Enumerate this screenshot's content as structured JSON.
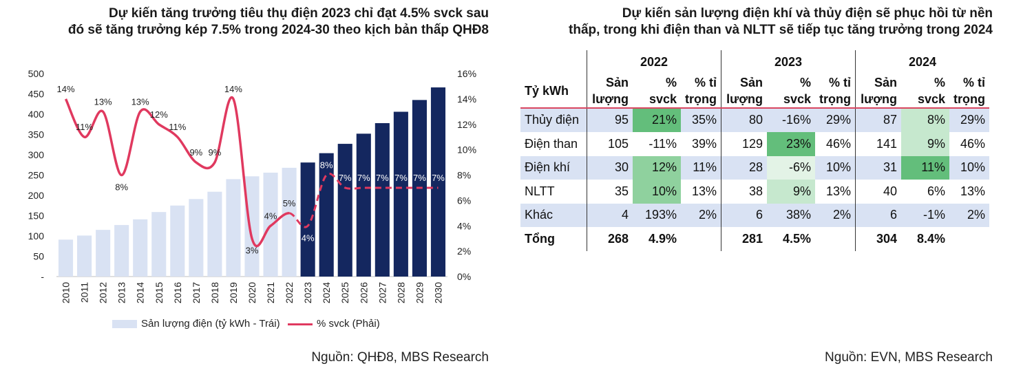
{
  "left_panel": {
    "title_line1": "Dự kiến tăng trưởng tiêu thụ điện 2023 chỉ đạt 4.5% svck sau",
    "title_line2": "đó sẽ tăng trưởng kép 7.5% trong 2024-30 theo kịch bản thấp QHĐ8",
    "source": "Nguồn: QHĐ8, MBS Research"
  },
  "right_panel": {
    "title_line1": "Dự kiến sản lượng điện khí và thủy điện sẽ phục hồi từ nền",
    "title_line2": "thấp, trong khi điện than và NLTT sẽ tiếp tục tăng trưởng trong 2024",
    "source": "Nguồn: EVN, MBS Research"
  },
  "chart_data": {
    "type": "bar",
    "categories": [
      "2010",
      "2011",
      "2012",
      "2013",
      "2014",
      "2015",
      "2016",
      "2017",
      "2018",
      "2019",
      "2020",
      "2021",
      "2022",
      "2023",
      "2024",
      "2025",
      "2026",
      "2027",
      "2028",
      "2029",
      "2030"
    ],
    "series": [
      {
        "name": "Sản lượng điện (tỷ kWh - Trái)",
        "type": "bar",
        "axis": "left",
        "values": [
          91,
          101,
          115,
          127,
          141,
          159,
          175,
          191,
          209,
          240,
          247,
          256,
          268,
          281,
          304,
          327,
          352,
          378,
          406,
          435,
          466
        ]
      },
      {
        "name": "% svck (Phải)",
        "type": "line",
        "axis": "right",
        "values": [
          14,
          11,
          13,
          8,
          13,
          12,
          11,
          9,
          9,
          14,
          3,
          4,
          5,
          4,
          8,
          7,
          7,
          7,
          7,
          7,
          7
        ],
        "labels": [
          "14%",
          "11%",
          "13%",
          "8%",
          "13%",
          "12%",
          "11%",
          "9%",
          "9%",
          "14%",
          "3%",
          "4%",
          "5%",
          "4%",
          "8%",
          "7%",
          "7%",
          "7%",
          "7%",
          "7%",
          "7%"
        ]
      }
    ],
    "forecast_start": "2023",
    "ylim_left": [
      0,
      500
    ],
    "ylim_right": [
      0,
      16
    ],
    "left_ticks": [
      "-",
      "50",
      "100",
      "150",
      "200",
      "250",
      "300",
      "350",
      "400",
      "450",
      "500"
    ],
    "right_ticks": [
      "0%",
      "2%",
      "4%",
      "6%",
      "8%",
      "10%",
      "12%",
      "14%",
      "16%"
    ],
    "colors": {
      "bar_actual": "#d9e2f3",
      "bar_forecast": "#14275f",
      "line": "#e0395f"
    },
    "legend_position": "bottom"
  },
  "table": {
    "unit": "Tỷ kWh",
    "years": [
      "2022",
      "2023",
      "2024"
    ],
    "sub_headers": [
      {
        "l1": "Sản",
        "l2": "lượng"
      },
      {
        "l1": "%",
        "l2": "svck"
      },
      {
        "l1": "% tỉ",
        "l2": "trọng"
      }
    ],
    "rows": [
      {
        "label": "Thủy điện",
        "cells": [
          "95",
          "21%",
          "35%",
          "80",
          "-16%",
          "29%",
          "87",
          "8%",
          "29%"
        ]
      },
      {
        "label": "Điện than",
        "cells": [
          "105",
          "-11%",
          "39%",
          "129",
          "23%",
          "46%",
          "141",
          "9%",
          "46%"
        ]
      },
      {
        "label": "Điện khí",
        "cells": [
          "30",
          "12%",
          "11%",
          "28",
          "-6%",
          "10%",
          "31",
          "11%",
          "10%"
        ]
      },
      {
        "label": "NLTT",
        "cells": [
          "35",
          "10%",
          "13%",
          "38",
          "9%",
          "13%",
          "40",
          "6%",
          "13%"
        ]
      },
      {
        "label": "Khác",
        "cells": [
          "4",
          "193%",
          "2%",
          "6",
          "38%",
          "2%",
          "6",
          "-1%",
          "2%"
        ]
      },
      {
        "label": "Tổng",
        "cells": [
          "268",
          "4.9%",
          "",
          "281",
          "4.5%",
          "",
          "304",
          "8.4%",
          ""
        ]
      }
    ]
  }
}
